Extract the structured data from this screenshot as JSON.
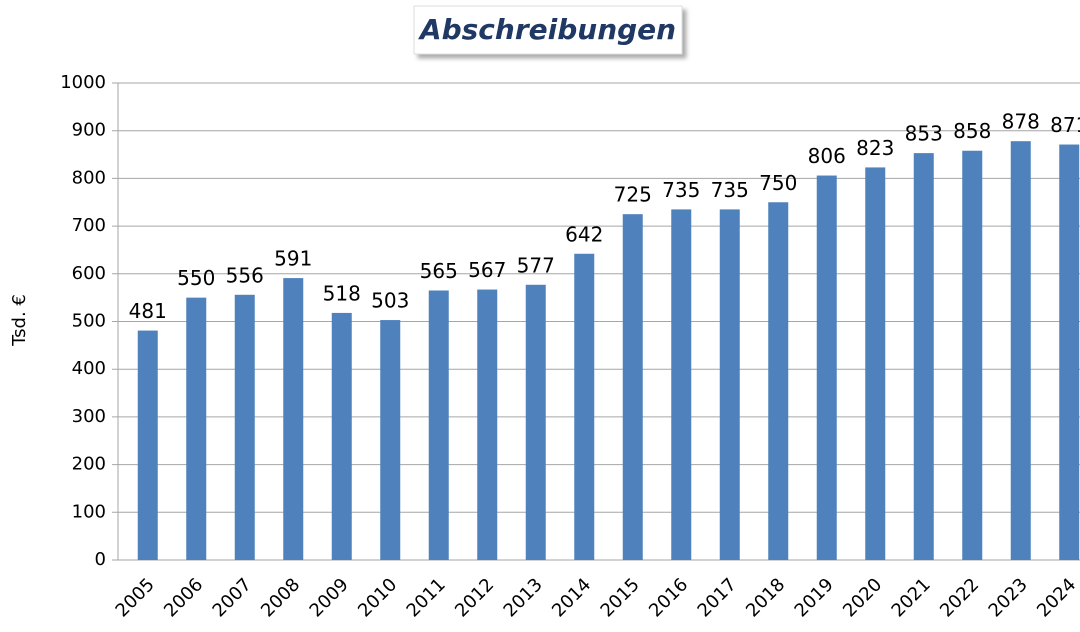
{
  "chart_data": {
    "type": "bar",
    "title": "Abschreibungen",
    "y_label": "Tsd. €",
    "categories": [
      "2005",
      "2006",
      "2007",
      "2008",
      "2009",
      "2010",
      "2011",
      "2012",
      "2013",
      "2014",
      "2015",
      "2016",
      "2017",
      "2018",
      "2019",
      "2020",
      "2021",
      "2022",
      "2023",
      "2024"
    ],
    "values": [
      481,
      550,
      556,
      591,
      518,
      503,
      565,
      567,
      577,
      642,
      725,
      735,
      735,
      750,
      806,
      823,
      853,
      858,
      878,
      871
    ],
    "color": "#4f81bd",
    "ylim": [
      0,
      1000
    ],
    "yticks": [
      0,
      100,
      200,
      300,
      400,
      500,
      600,
      700,
      800,
      900,
      1000
    ],
    "grid": true
  }
}
